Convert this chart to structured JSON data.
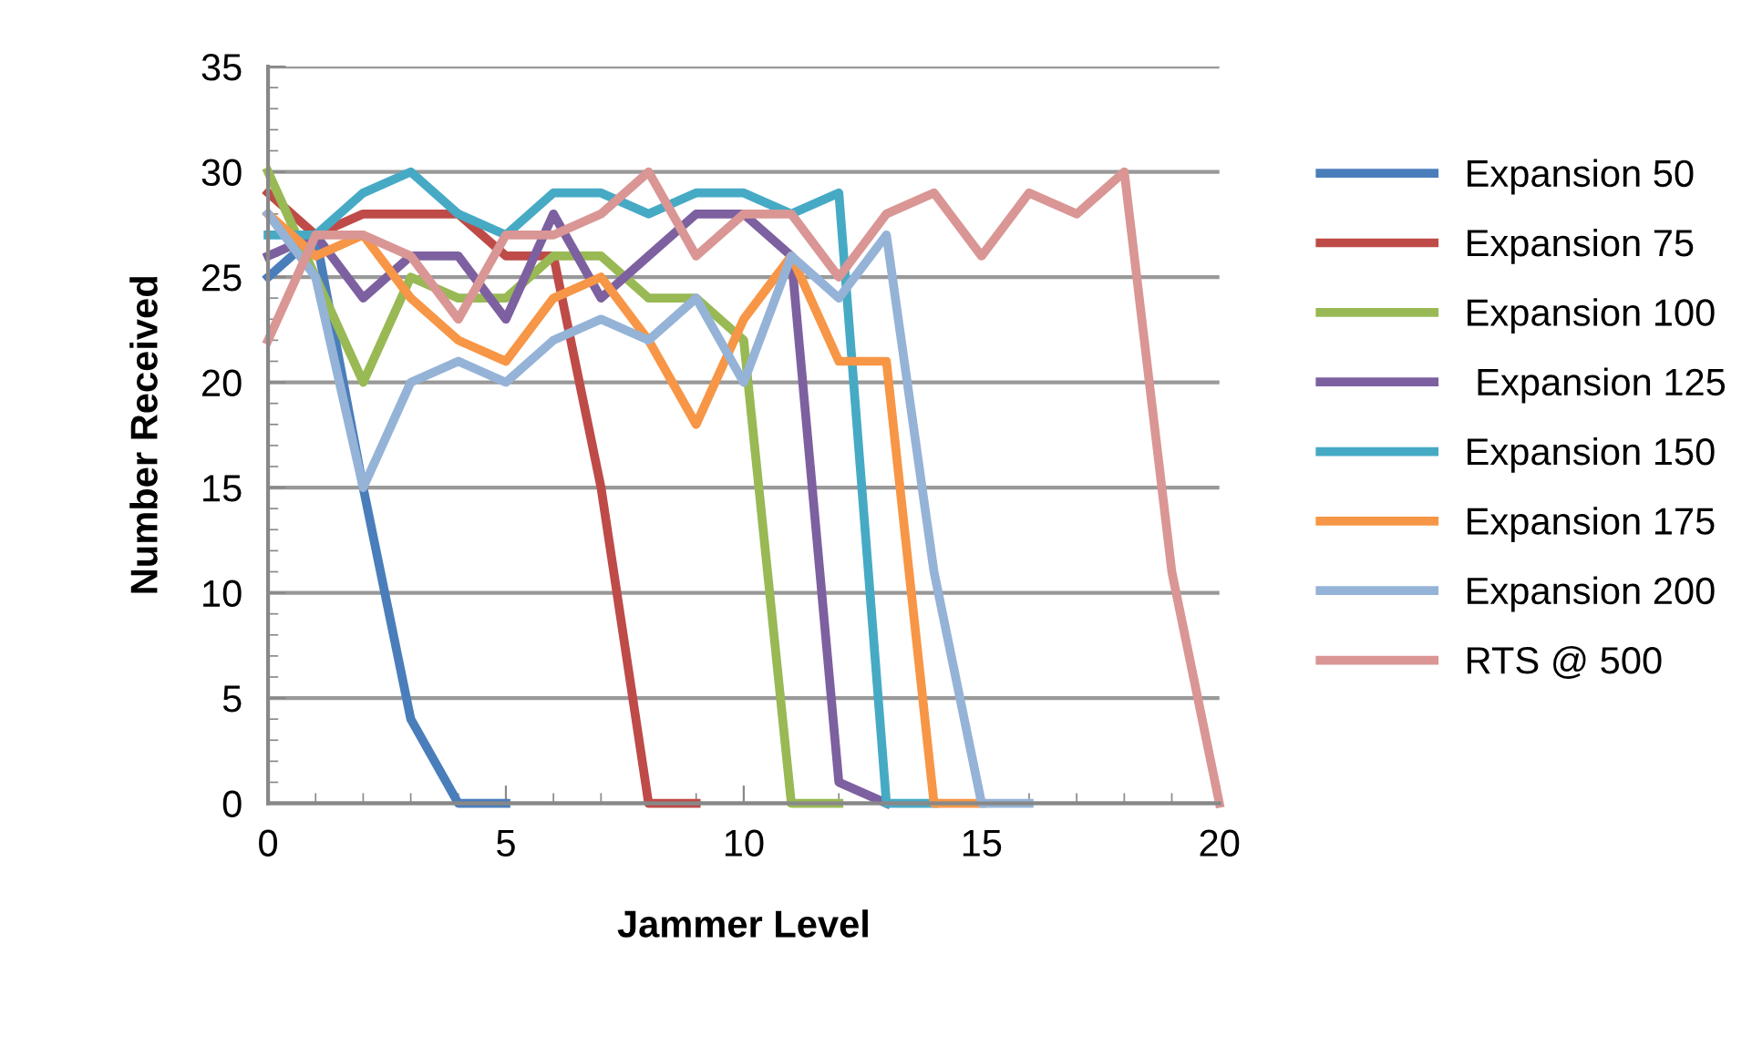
{
  "chart_data": {
    "type": "line",
    "xlabel": "Jammer Level",
    "ylabel": "Number Received",
    "xlim": [
      0,
      20
    ],
    "ylim": [
      0,
      35
    ],
    "xticks": [
      0,
      5,
      10,
      15,
      20
    ],
    "yticks": [
      0,
      5,
      10,
      15,
      20,
      25,
      30,
      35
    ],
    "grid": "y",
    "legend": "right",
    "marker": "none",
    "line_style": "solid",
    "series": [
      {
        "name": "Expansion 50",
        "color": "#4a7ebb",
        "x": [
          0,
          1,
          2,
          3,
          4,
          5
        ],
        "values": [
          25,
          27,
          15,
          4,
          0,
          0
        ]
      },
      {
        "name": "Expansion 75",
        "color": "#be4b48",
        "x": [
          0,
          1,
          2,
          3,
          4,
          5,
          6,
          7,
          8,
          9
        ],
        "values": [
          29,
          27,
          28,
          28,
          28,
          26,
          26,
          15,
          0,
          0
        ]
      },
      {
        "name": "Expansion 100",
        "color": "#98b954",
        "x": [
          0,
          1,
          2,
          3,
          4,
          5,
          6,
          7,
          8,
          9,
          10,
          11,
          12
        ],
        "values": [
          30,
          25,
          20,
          25,
          24,
          24,
          26,
          26,
          24,
          24,
          22,
          0,
          0
        ]
      },
      {
        "name": " Expansion 125",
        "color": "#7d60a0",
        "x": [
          0,
          1,
          2,
          3,
          4,
          5,
          6,
          7,
          8,
          9,
          10,
          11,
          12,
          13
        ],
        "values": [
          26,
          27,
          24,
          26,
          26,
          23,
          28,
          24,
          26,
          28,
          28,
          26,
          1,
          0
        ]
      },
      {
        "name": "Expansion 150",
        "color": "#46aac5",
        "x": [
          0,
          1,
          2,
          3,
          4,
          5,
          6,
          7,
          8,
          9,
          10,
          11,
          12,
          13,
          14
        ],
        "values": [
          27,
          27,
          29,
          30,
          28,
          27,
          29,
          29,
          28,
          29,
          29,
          28,
          29,
          0,
          0
        ]
      },
      {
        "name": "Expansion 175",
        "color": "#f79646",
        "x": [
          0,
          1,
          2,
          3,
          4,
          5,
          6,
          7,
          8,
          9,
          10,
          11,
          12,
          13,
          14,
          15
        ],
        "values": [
          28,
          26,
          27,
          24,
          22,
          21,
          24,
          25,
          22,
          18,
          23,
          26,
          21,
          21,
          0,
          0
        ]
      },
      {
        "name": "Expansion 200",
        "color": "#95b3d7",
        "x": [
          0,
          1,
          2,
          3,
          4,
          5,
          6,
          7,
          8,
          9,
          10,
          11,
          12,
          13,
          14,
          15,
          16
        ],
        "values": [
          28,
          25,
          15,
          20,
          21,
          20,
          22,
          23,
          22,
          24,
          20,
          26,
          24,
          27,
          11,
          0,
          0
        ]
      },
      {
        "name": "RTS @ 500",
        "color": "#d99694",
        "x": [
          0,
          1,
          2,
          3,
          4,
          5,
          6,
          7,
          8,
          9,
          10,
          11,
          12,
          13,
          14,
          15,
          16,
          17,
          18,
          19,
          20
        ],
        "values": [
          22,
          27,
          27,
          26,
          23,
          27,
          27,
          28,
          30,
          26,
          28,
          28,
          25,
          28,
          29,
          26,
          29,
          28,
          30,
          11,
          0
        ]
      }
    ]
  }
}
